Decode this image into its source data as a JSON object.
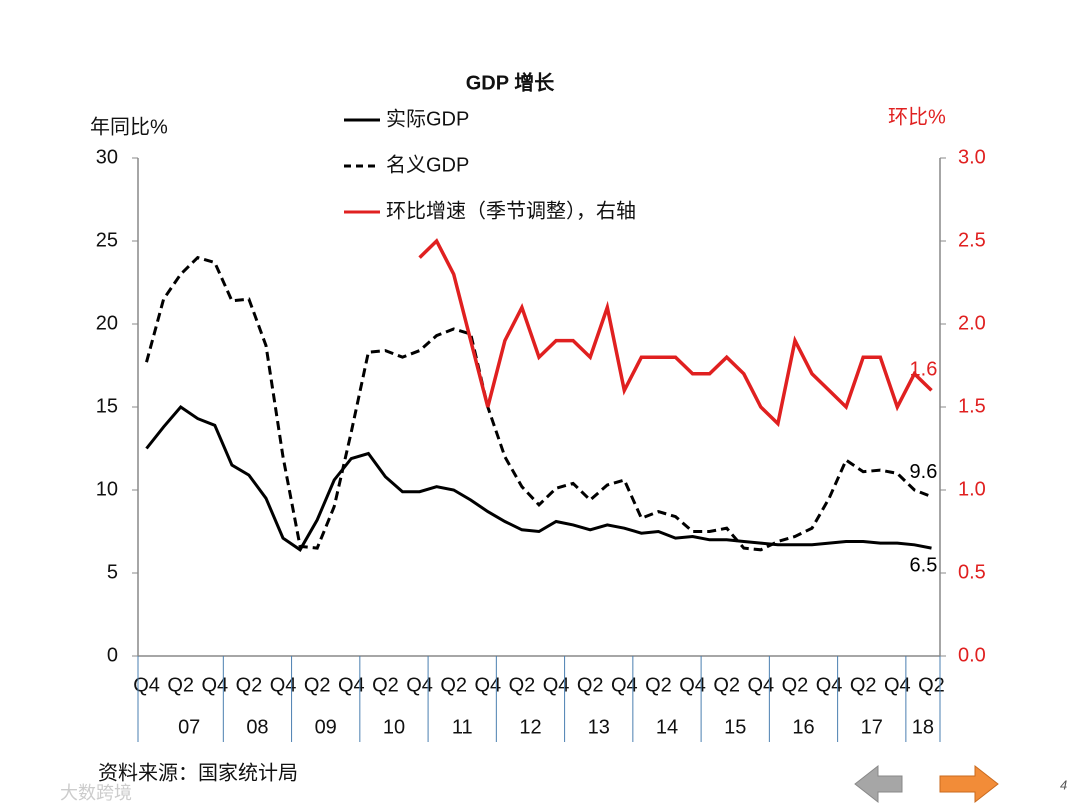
{
  "chart_data": {
    "type": "line",
    "title": "GDP 增长",
    "y_label": "年同比%",
    "y2_label": "环比%",
    "categories": [
      "Q4",
      null,
      "Q2",
      null,
      "Q4",
      null,
      "Q2",
      null,
      "Q4",
      null,
      "Q2",
      null,
      "Q4",
      null,
      "Q2",
      null,
      "Q4",
      null,
      "Q2",
      null,
      "Q4",
      null,
      "Q2",
      null,
      "Q4",
      null,
      "Q2",
      null,
      "Q4",
      null,
      "Q2",
      null,
      "Q4",
      null,
      "Q2",
      null,
      "Q4",
      null,
      "Q2",
      null,
      "Q4",
      null,
      "Q2",
      null,
      "Q4",
      null,
      "Q2"
    ],
    "years": [
      "07",
      "08",
      "09",
      "10",
      "11",
      "12",
      "13",
      "14",
      "15",
      "16",
      "17",
      "18"
    ],
    "series": [
      {
        "name": "实际GDP",
        "color": "#000000",
        "dash": false,
        "values": [
          12.5,
          13.8,
          15.0,
          14.3,
          13.9,
          11.5,
          10.9,
          9.5,
          7.1,
          6.4,
          8.2,
          10.6,
          11.9,
          12.2,
          10.8,
          9.9,
          9.9,
          10.2,
          10.0,
          9.4,
          8.7,
          8.1,
          7.6,
          7.5,
          8.1,
          7.9,
          7.6,
          7.9,
          7.7,
          7.4,
          7.5,
          7.1,
          7.2,
          7.0,
          7.0,
          6.9,
          6.8,
          6.7,
          6.7,
          6.7,
          6.8,
          6.9,
          6.9,
          6.8,
          6.8,
          6.7,
          6.5
        ]
      },
      {
        "name": "名义GDP",
        "color": "#000000",
        "dash": true,
        "values": [
          17.7,
          21.5,
          23.0,
          24.0,
          23.7,
          21.4,
          21.5,
          18.7,
          12.0,
          6.6,
          6.5,
          9.0,
          13.5,
          18.3,
          18.4,
          18.0,
          18.4,
          19.3,
          19.7,
          19.4,
          15.0,
          12.0,
          10.2,
          9.1,
          10.1,
          10.4,
          9.4,
          10.3,
          10.6,
          8.3,
          8.7,
          8.4,
          7.5,
          7.5,
          7.7,
          6.5,
          6.4,
          6.9,
          7.2,
          7.7,
          9.5,
          11.8,
          11.1,
          11.2,
          11.0,
          10.0,
          9.6
        ]
      },
      {
        "name": "环比增速（季节调整），右轴",
        "color": "#e02020",
        "dash": false,
        "axis": "y2",
        "values": [
          null,
          null,
          null,
          null,
          null,
          null,
          null,
          null,
          null,
          null,
          null,
          null,
          null,
          null,
          null,
          null,
          2.4,
          2.5,
          2.3,
          1.9,
          1.5,
          1.9,
          2.1,
          1.8,
          1.9,
          1.9,
          1.8,
          2.1,
          1.6,
          1.8,
          1.8,
          1.8,
          1.7,
          1.7,
          1.8,
          1.7,
          1.5,
          1.4,
          1.9,
          1.7,
          1.6,
          1.5,
          1.8,
          1.8,
          1.5,
          1.7,
          1.6
        ]
      }
    ],
    "ylim": [
      0,
      30
    ],
    "yticks": [
      0,
      5,
      10,
      15,
      20,
      25,
      30
    ],
    "y2lim": [
      0,
      3
    ],
    "y2ticks": [
      {
        "value": 0,
        "label": "0.0"
      },
      {
        "value": 0.5,
        "label": "0.5"
      },
      {
        "value": 1,
        "label": "1.0"
      },
      {
        "value": 1.5,
        "label": "1.5"
      },
      {
        "value": 2,
        "label": "2.0"
      },
      {
        "value": 2.5,
        "label": "2.5"
      },
      {
        "value": 3,
        "label": "3.0"
      }
    ],
    "y2_color": "#e02020",
    "source": "资料来源：国家统计局",
    "watermark": "大数跨境",
    "page_number": "4"
  }
}
